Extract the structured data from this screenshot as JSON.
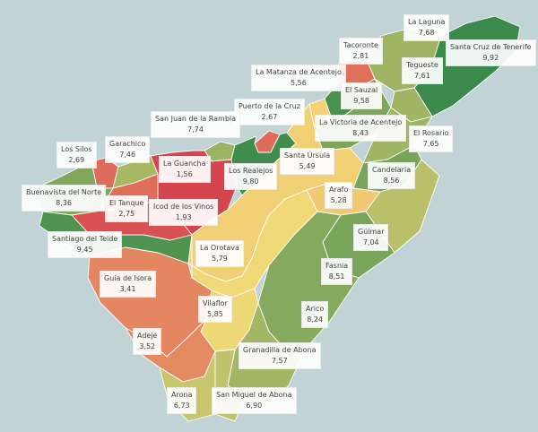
{
  "chart_data": {
    "type": "choropleth",
    "title": "",
    "color_scale": {
      "low": "#d6444f",
      "mid": "#f3d977",
      "high": "#3b8a4c"
    },
    "regions": [
      {
        "name": "La Laguna",
        "value": "7,68"
      },
      {
        "name": "Santa Cruz de Tenerife",
        "value": "9,92"
      },
      {
        "name": "Tacoronte",
        "value": "2,81"
      },
      {
        "name": "Tegueste",
        "value": "7,61"
      },
      {
        "name": "La Matanza de Acentejo",
        "value": "5,56"
      },
      {
        "name": "El Sauzal",
        "value": "9,58"
      },
      {
        "name": "Puerto de la Cruz",
        "value": "2,67"
      },
      {
        "name": "San Juan de la Rambla",
        "value": "7,74"
      },
      {
        "name": "La Victoria de Acentejo",
        "value": "8,43"
      },
      {
        "name": "El Rosario",
        "value": "7,65"
      },
      {
        "name": "Los Silos",
        "value": "2,69"
      },
      {
        "name": "Garachico",
        "value": "7,46"
      },
      {
        "name": "La Guancha",
        "value": "1,56"
      },
      {
        "name": "Los Realejos",
        "value": "9,80"
      },
      {
        "name": "Santa Úrsula",
        "value": "5,49"
      },
      {
        "name": "Candelaria",
        "value": "8,56"
      },
      {
        "name": "Buenavista del Norte",
        "value": "8,36"
      },
      {
        "name": "El Tanque",
        "value": "2,75"
      },
      {
        "name": "Icod de los Vinos",
        "value": "1,93"
      },
      {
        "name": "Arafo",
        "value": "5,28"
      },
      {
        "name": "Güímar",
        "value": "7,04"
      },
      {
        "name": "Santiago del Teide",
        "value": "9,45"
      },
      {
        "name": "La Orotava",
        "value": "5,79"
      },
      {
        "name": "Fasnia",
        "value": "8,51"
      },
      {
        "name": "Guía de Isora",
        "value": "3,41"
      },
      {
        "name": "Arico",
        "value": "8,24"
      },
      {
        "name": "Vilaflor",
        "value": "5,85"
      },
      {
        "name": "Adeje",
        "value": "3,52"
      },
      {
        "name": "Granadilla de Abona",
        "value": "7,57"
      },
      {
        "name": "Arona",
        "value": "6,73"
      },
      {
        "name": "San Miguel de Abona",
        "value": "6,90"
      }
    ]
  }
}
